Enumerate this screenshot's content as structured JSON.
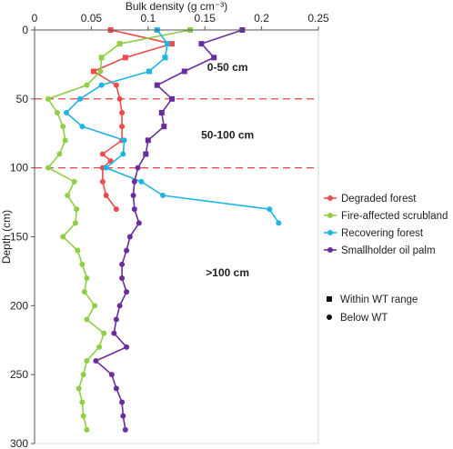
{
  "chart_data": {
    "type": "line",
    "xlabel": "Bulk density (g cm⁻³)",
    "ylabel": "Depth (cm)",
    "xlim": [
      0,
      0.25
    ],
    "ylim": [
      0,
      300
    ],
    "x_axis_position": "top",
    "y_axis_inverted": true,
    "xticks": [
      "0",
      "0.05",
      "0.1",
      "0.15",
      "0.2",
      "0.25"
    ],
    "yticks": [
      "0",
      "50",
      "100",
      "150",
      "200",
      "250",
      "300"
    ],
    "grid": false,
    "legend_placement": "right",
    "reference_lines": [
      {
        "y": 50,
        "color": "#e03030",
        "style": "dashed"
      },
      {
        "y": 100,
        "color": "#e03030",
        "style": "dashed"
      }
    ],
    "annotations": [
      {
        "text": "0-50 cm",
        "x": 0.17,
        "y": 27
      },
      {
        "text": "50-100 cm",
        "x": 0.17,
        "y": 76
      },
      {
        "text": ">100 cm",
        "x": 0.17,
        "y": 176
      }
    ],
    "marker_legend": [
      {
        "label": "Within WT range",
        "marker": "square"
      },
      {
        "label": "Below WT",
        "marker": "circle"
      }
    ],
    "series": [
      {
        "name": "Degraded forest",
        "color": "#ee4b4b",
        "points": [
          {
            "x": 0.067,
            "y": 0,
            "m": "square"
          },
          {
            "x": 0.121,
            "y": 10,
            "m": "square"
          },
          {
            "x": 0.08,
            "y": 20,
            "m": "square"
          },
          {
            "x": 0.052,
            "y": 30,
            "m": "square"
          },
          {
            "x": 0.072,
            "y": 40,
            "m": "circle"
          },
          {
            "x": 0.075,
            "y": 50,
            "m": "circle"
          },
          {
            "x": 0.077,
            "y": 60,
            "m": "circle"
          },
          {
            "x": 0.077,
            "y": 70,
            "m": "circle"
          },
          {
            "x": 0.077,
            "y": 80,
            "m": "circle"
          },
          {
            "x": 0.06,
            "y": 90,
            "m": "circle"
          },
          {
            "x": 0.067,
            "y": 95,
            "m": "circle"
          },
          {
            "x": 0.06,
            "y": 100,
            "m": "circle"
          },
          {
            "x": 0.06,
            "y": 110,
            "m": "circle"
          },
          {
            "x": 0.063,
            "y": 120,
            "m": "circle"
          },
          {
            "x": 0.072,
            "y": 130,
            "m": "circle"
          }
        ]
      },
      {
        "name": "Fire-affected scrubland",
        "color": "#8fce45",
        "points": [
          {
            "x": 0.137,
            "y": 0,
            "m": "square"
          },
          {
            "x": 0.075,
            "y": 10,
            "m": "square"
          },
          {
            "x": 0.059,
            "y": 20,
            "m": "square"
          },
          {
            "x": 0.058,
            "y": 30,
            "m": "circle"
          },
          {
            "x": 0.046,
            "y": 40,
            "m": "circle"
          },
          {
            "x": 0.012,
            "y": 50,
            "m": "circle"
          },
          {
            "x": 0.02,
            "y": 60,
            "m": "circle"
          },
          {
            "x": 0.025,
            "y": 70,
            "m": "circle"
          },
          {
            "x": 0.027,
            "y": 80,
            "m": "circle"
          },
          {
            "x": 0.022,
            "y": 90,
            "m": "circle"
          },
          {
            "x": 0.012,
            "y": 100,
            "m": "circle"
          },
          {
            "x": 0.035,
            "y": 110,
            "m": "circle"
          },
          {
            "x": 0.029,
            "y": 120,
            "m": "circle"
          },
          {
            "x": 0.037,
            "y": 130,
            "m": "circle"
          },
          {
            "x": 0.036,
            "y": 140,
            "m": "circle"
          },
          {
            "x": 0.025,
            "y": 150,
            "m": "circle"
          },
          {
            "x": 0.038,
            "y": 160,
            "m": "circle"
          },
          {
            "x": 0.042,
            "y": 170,
            "m": "circle"
          },
          {
            "x": 0.046,
            "y": 180,
            "m": "circle"
          },
          {
            "x": 0.044,
            "y": 190,
            "m": "circle"
          },
          {
            "x": 0.053,
            "y": 200,
            "m": "circle"
          },
          {
            "x": 0.046,
            "y": 210,
            "m": "circle"
          },
          {
            "x": 0.061,
            "y": 220,
            "m": "circle"
          },
          {
            "x": 0.057,
            "y": 230,
            "m": "circle"
          },
          {
            "x": 0.046,
            "y": 240,
            "m": "circle"
          },
          {
            "x": 0.043,
            "y": 250,
            "m": "circle"
          },
          {
            "x": 0.039,
            "y": 260,
            "m": "circle"
          },
          {
            "x": 0.042,
            "y": 270,
            "m": "circle"
          },
          {
            "x": 0.043,
            "y": 280,
            "m": "circle"
          },
          {
            "x": 0.046,
            "y": 290,
            "m": "circle"
          }
        ]
      },
      {
        "name": "Recovering forest",
        "color": "#1fb4e6",
        "points": [
          {
            "x": 0.108,
            "y": 0,
            "m": "square"
          },
          {
            "x": 0.117,
            "y": 10,
            "m": "square"
          },
          {
            "x": 0.115,
            "y": 20,
            "m": "square"
          },
          {
            "x": 0.101,
            "y": 30,
            "m": "square"
          },
          {
            "x": 0.059,
            "y": 40,
            "m": "circle"
          },
          {
            "x": 0.04,
            "y": 50,
            "m": "circle"
          },
          {
            "x": 0.028,
            "y": 60,
            "m": "circle"
          },
          {
            "x": 0.042,
            "y": 70,
            "m": "circle"
          },
          {
            "x": 0.079,
            "y": 80,
            "m": "circle"
          },
          {
            "x": 0.078,
            "y": 90,
            "m": "circle"
          },
          {
            "x": 0.063,
            "y": 100,
            "m": "circle"
          },
          {
            "x": 0.094,
            "y": 110,
            "m": "circle"
          },
          {
            "x": 0.113,
            "y": 120,
            "m": "circle"
          },
          {
            "x": 0.207,
            "y": 130,
            "m": "circle"
          },
          {
            "x": 0.215,
            "y": 140,
            "m": "circle"
          }
        ]
      },
      {
        "name": "Smallholder oil palm",
        "color": "#6a2c9e",
        "points": [
          {
            "x": 0.183,
            "y": 0,
            "m": "square"
          },
          {
            "x": 0.147,
            "y": 10,
            "m": "square"
          },
          {
            "x": 0.158,
            "y": 20,
            "m": "square"
          },
          {
            "x": 0.132,
            "y": 30,
            "m": "square"
          },
          {
            "x": 0.108,
            "y": 40,
            "m": "square"
          },
          {
            "x": 0.121,
            "y": 50,
            "m": "square"
          },
          {
            "x": 0.112,
            "y": 60,
            "m": "square"
          },
          {
            "x": 0.114,
            "y": 70,
            "m": "square"
          },
          {
            "x": 0.1,
            "y": 80,
            "m": "square"
          },
          {
            "x": 0.098,
            "y": 90,
            "m": "square"
          },
          {
            "x": 0.091,
            "y": 100,
            "m": "circle"
          },
          {
            "x": 0.088,
            "y": 110,
            "m": "circle"
          },
          {
            "x": 0.087,
            "y": 120,
            "m": "circle"
          },
          {
            "x": 0.088,
            "y": 130,
            "m": "circle"
          },
          {
            "x": 0.092,
            "y": 140,
            "m": "circle"
          },
          {
            "x": 0.084,
            "y": 150,
            "m": "circle"
          },
          {
            "x": 0.081,
            "y": 160,
            "m": "circle"
          },
          {
            "x": 0.077,
            "y": 170,
            "m": "circle"
          },
          {
            "x": 0.077,
            "y": 180,
            "m": "circle"
          },
          {
            "x": 0.081,
            "y": 190,
            "m": "circle"
          },
          {
            "x": 0.075,
            "y": 200,
            "m": "circle"
          },
          {
            "x": 0.072,
            "y": 210,
            "m": "circle"
          },
          {
            "x": 0.07,
            "y": 220,
            "m": "circle"
          },
          {
            "x": 0.081,
            "y": 230,
            "m": "circle"
          },
          {
            "x": 0.054,
            "y": 240,
            "m": "circle"
          },
          {
            "x": 0.068,
            "y": 250,
            "m": "circle"
          },
          {
            "x": 0.072,
            "y": 260,
            "m": "circle"
          },
          {
            "x": 0.077,
            "y": 270,
            "m": "circle"
          },
          {
            "x": 0.078,
            "y": 280,
            "m": "circle"
          },
          {
            "x": 0.08,
            "y": 290,
            "m": "circle"
          }
        ]
      }
    ]
  }
}
